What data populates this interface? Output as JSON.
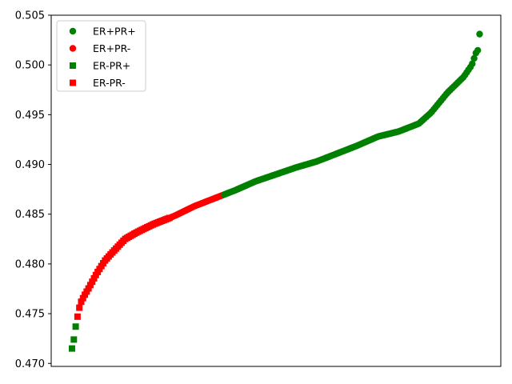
{
  "chart_data": {
    "type": "scatter",
    "title": "",
    "xlabel": "",
    "ylabel": "",
    "x_ticks_visible": false,
    "ylim": [
      0.4697,
      0.505
    ],
    "y_ticks": [
      {
        "value": 0.47,
        "label": "0.470"
      },
      {
        "value": 0.475,
        "label": "0.475"
      },
      {
        "value": 0.48,
        "label": "0.480"
      },
      {
        "value": 0.485,
        "label": "0.485"
      },
      {
        "value": 0.49,
        "label": "0.490"
      },
      {
        "value": 0.495,
        "label": "0.495"
      },
      {
        "value": 0.5,
        "label": "0.500"
      },
      {
        "value": 0.505,
        "label": "0.505"
      }
    ],
    "grid": false,
    "legend_position": "top-left",
    "legend": [
      {
        "label": "ER+PR+",
        "marker": "circle",
        "color": "#008000"
      },
      {
        "label": "ER+PR-",
        "marker": "circle",
        "color": "#ff0000"
      },
      {
        "label": "ER-PR+",
        "marker": "square",
        "color": "#008000"
      },
      {
        "label": "ER-PR-",
        "marker": "square",
        "color": "#ff0000"
      }
    ],
    "x_range": [
      0,
      100
    ],
    "curve_points": [
      [
        0.0,
        0.4715
      ],
      [
        0.5,
        0.4725
      ],
      [
        1.0,
        0.474
      ],
      [
        2.0,
        0.476
      ],
      [
        3.0,
        0.4768
      ],
      [
        4.0,
        0.4775
      ],
      [
        6.0,
        0.479
      ],
      [
        8.0,
        0.4803
      ],
      [
        10.0,
        0.4812
      ],
      [
        13.0,
        0.4825
      ],
      [
        16.0,
        0.4832
      ],
      [
        20.0,
        0.484
      ],
      [
        25.0,
        0.4848
      ],
      [
        30.0,
        0.4858
      ],
      [
        35.0,
        0.4866
      ],
      [
        40.0,
        0.4874
      ],
      [
        45.0,
        0.4883
      ],
      [
        50.0,
        0.489
      ],
      [
        55.0,
        0.4897
      ],
      [
        60.0,
        0.4903
      ],
      [
        65.0,
        0.4911
      ],
      [
        70.0,
        0.4919
      ],
      [
        75.0,
        0.4928
      ],
      [
        80.0,
        0.4933
      ],
      [
        85.0,
        0.4941
      ],
      [
        88.0,
        0.4952
      ],
      [
        90.0,
        0.4962
      ],
      [
        92.0,
        0.4972
      ],
      [
        94.0,
        0.498
      ],
      [
        96.0,
        0.4988
      ],
      [
        98.0,
        0.5
      ],
      [
        99.0,
        0.5012
      ],
      [
        99.5,
        0.5015
      ],
      [
        100.0,
        0.5035
      ]
    ],
    "series_segments": [
      {
        "from": 0.0,
        "to": 1.0,
        "series": "ER-PR+"
      },
      {
        "from": 1.0,
        "to": 24.0,
        "series": "ER-PR-"
      },
      {
        "from": 24.0,
        "to": 37.0,
        "series": "ER+PR-"
      },
      {
        "from": 37.0,
        "to": 100.0,
        "series": "ER+PR+"
      }
    ]
  }
}
